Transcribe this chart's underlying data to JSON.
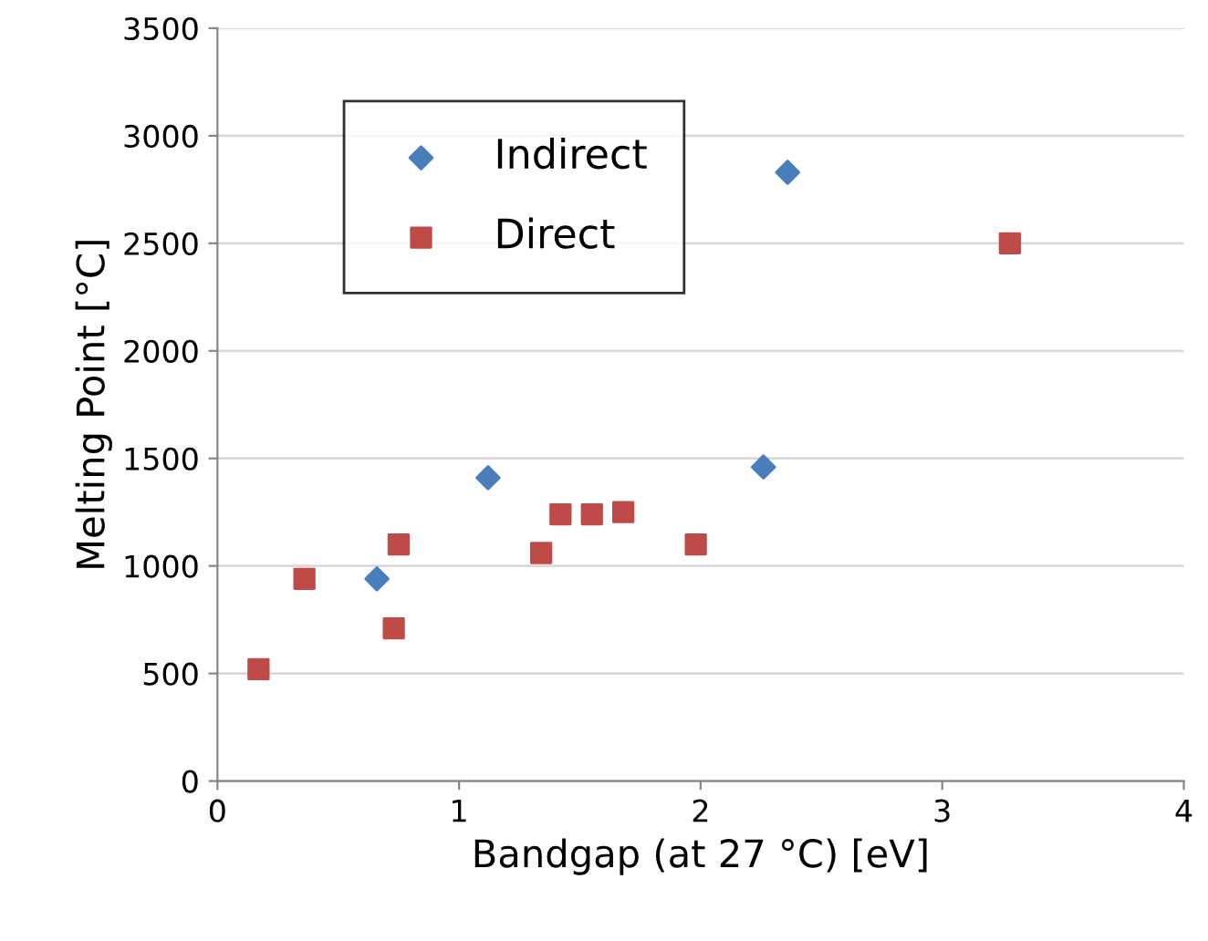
{
  "chart_data": {
    "type": "scatter",
    "xlabel": "Bandgap (at 27 °C) [eV]",
    "ylabel": "Melting Point [°C]",
    "xlim": [
      0,
      4
    ],
    "xticks": [
      0,
      1,
      2,
      3,
      4
    ],
    "ylim": [
      0,
      3500
    ],
    "yticks": [
      0,
      500,
      1000,
      1500,
      2000,
      2500,
      3000,
      3500
    ],
    "grid": "y",
    "legend": "top left",
    "series": [
      {
        "name": "Indirect",
        "color": "#4a7ebb",
        "marker": "diamond",
        "x": [
          0.66,
          1.12,
          2.26,
          2.36
        ],
        "values": [
          940,
          1410,
          1460,
          2830
        ]
      },
      {
        "name": "Direct",
        "color": "#be4b48",
        "marker": "square",
        "x": [
          0.17,
          0.36,
          0.73,
          0.75,
          1.34,
          1.42,
          1.55,
          1.68,
          1.98,
          3.28
        ],
        "values": [
          520,
          940,
          710,
          1100,
          1060,
          1240,
          1240,
          1250,
          1100,
          2500
        ]
      }
    ]
  }
}
